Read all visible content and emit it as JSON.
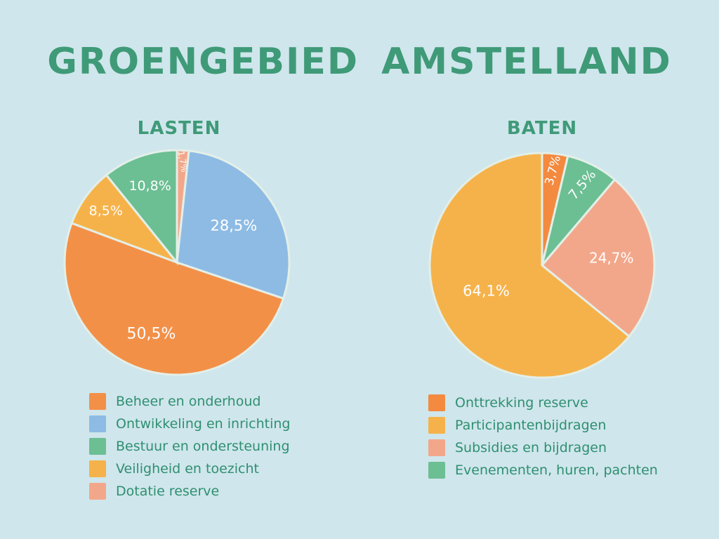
{
  "title": "GROENGEBIED AMSTELLAND",
  "chart_data": [
    {
      "type": "pie",
      "title": "LASTEN",
      "categories": [
        "Beheer en onderhoud",
        "Ontwikkeling en inrichting",
        "Bestuur en ondersteuning",
        "Veiligheid en toezicht",
        "Dotatie reserve"
      ],
      "values": [
        50.5,
        28.5,
        10.8,
        8.5,
        1.7
      ],
      "labels": [
        "50,5%",
        "28,5%",
        "10,8%",
        "8,5%",
        "1,7%"
      ],
      "colors": [
        "#f39048",
        "#8dbbe4",
        "#6bbf93",
        "#f6b24a",
        "#f3a78a"
      ],
      "legend": "bottom"
    },
    {
      "type": "pie",
      "title": "BATEN",
      "categories": [
        "Onttrekking reserve",
        "Participantenbijdragen",
        "Subsidies en bijdragen",
        "Evenementen, huren, pachten"
      ],
      "values": [
        3.7,
        64.1,
        24.7,
        7.5
      ],
      "labels": [
        "3,7%",
        "64,1%",
        "24,7%",
        "7,5%"
      ],
      "colors": [
        "#f38a3f",
        "#f6b24a",
        "#f3a78a",
        "#6bbf93"
      ],
      "legend": "bottom"
    }
  ]
}
